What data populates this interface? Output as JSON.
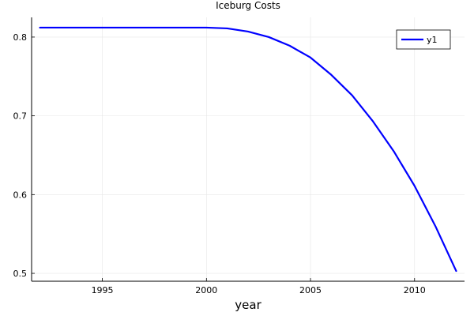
{
  "chart_data": {
    "type": "line",
    "title": "Iceburg Costs",
    "xlabel": "year",
    "ylabel": "",
    "xlim": [
      1991.6,
      2012.4
    ],
    "ylim": [
      0.49,
      0.825
    ],
    "x_ticks": [
      1995,
      2000,
      2005,
      2010
    ],
    "y_ticks": [
      0.5,
      0.6,
      0.7,
      0.8
    ],
    "x_tick_labels": [
      "1995",
      "2000",
      "2005",
      "2010"
    ],
    "y_tick_labels": [
      "0.5",
      "0.6",
      "0.7",
      "0.8"
    ],
    "grid": true,
    "legend_position": "top-right",
    "series": [
      {
        "name": "y1",
        "color": "#0000ff",
        "x": [
          1992,
          1993,
          1994,
          1995,
          1996,
          1997,
          1998,
          1999,
          2000,
          2001,
          2002,
          2003,
          2004,
          2005,
          2006,
          2007,
          2008,
          2009,
          2010,
          2011,
          2012
        ],
        "y": [
          0.812,
          0.812,
          0.812,
          0.812,
          0.812,
          0.812,
          0.812,
          0.812,
          0.812,
          0.811,
          0.807,
          0.8,
          0.789,
          0.774,
          0.752,
          0.726,
          0.693,
          0.655,
          0.611,
          0.56,
          0.503
        ]
      }
    ]
  }
}
